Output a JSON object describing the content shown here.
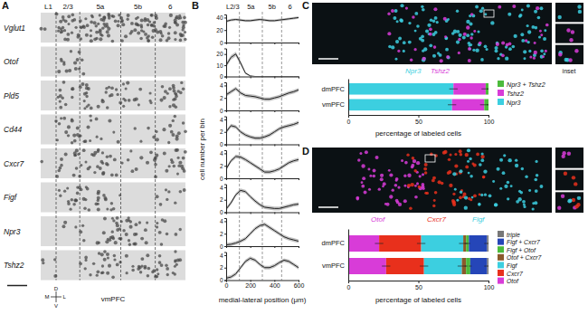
{
  "figure": {
    "panel_a": {
      "letter": "A",
      "genes": [
        "Vglut1",
        "Otof",
        "Pld5",
        "Cd44",
        "Cxcr7",
        "Figf",
        "Npr3",
        "Tshz2"
      ],
      "layers": [
        "L1",
        "2/3",
        "5a",
        "5b",
        "6"
      ],
      "region": "vmPFC",
      "compass": [
        "D",
        "V",
        "M",
        "L"
      ]
    },
    "panel_b": {
      "letter": "B",
      "layers": [
        "L2/3",
        "5a",
        "5b",
        "6"
      ],
      "layer_boundaries": [
        110,
        300,
        460
      ],
      "ylabel": "cell number per bin",
      "xlabel": "medial-lateral position (μm)"
    },
    "panel_c": {
      "letter": "C",
      "image_labels": [
        {
          "text": "Npr3",
          "color": "#3ccfe0"
        },
        {
          "text": "Tshz2",
          "color": "#d83cd8"
        }
      ],
      "inset": "inset"
    },
    "panel_d": {
      "letter": "D",
      "image_labels": [
        {
          "text": "Otof",
          "color": "#d83cd8"
        },
        {
          "text": "Cxcr7",
          "color": "#e8301c"
        },
        {
          "text": "Figf",
          "color": "#3ccfe0"
        }
      ]
    }
  },
  "chart_data": [
    {
      "type": "line",
      "x": [
        0,
        40,
        80,
        120,
        160,
        200,
        240,
        280,
        320,
        360,
        400,
        440,
        480,
        520,
        560,
        600
      ],
      "series": [
        {
          "color": "#222222",
          "values": [
            34,
            36,
            37,
            36,
            35,
            35,
            36,
            37,
            36,
            35,
            35,
            36,
            37,
            38,
            39,
            40
          ],
          "errors": [
            2,
            2,
            2,
            2,
            2,
            2,
            2,
            2,
            2,
            2,
            2,
            2,
            2,
            2,
            2,
            2
          ]
        }
      ],
      "xlim": [
        0,
        600
      ],
      "xticks": [
        0,
        200,
        400,
        600
      ],
      "ylim": [
        0,
        45
      ],
      "yticks": [
        0,
        20,
        40
      ],
      "tick_labels": "y"
    },
    {
      "type": "line",
      "x": [
        0,
        40,
        80,
        120,
        160,
        200,
        240,
        280,
        320,
        360,
        400,
        440,
        480,
        520,
        560,
        600
      ],
      "series": [
        {
          "color": "#222222",
          "values": [
            10,
            17,
            20,
            12,
            3,
            0.5,
            0,
            0,
            0,
            0,
            0,
            0,
            0,
            0,
            0,
            0
          ],
          "errors": [
            2,
            2,
            2,
            2,
            1,
            0.3,
            0,
            0,
            0,
            0,
            0,
            0,
            0,
            0,
            0,
            0
          ]
        }
      ],
      "xlim": [
        0,
        600
      ],
      "xticks": [
        0,
        200,
        400,
        600
      ],
      "ylim": [
        0,
        25
      ],
      "yticks": [
        0,
        10,
        20
      ],
      "tick_labels": "y"
    },
    {
      "type": "line",
      "x": [
        0,
        40,
        80,
        120,
        160,
        200,
        240,
        280,
        320,
        360,
        400,
        440,
        480,
        520,
        560,
        600
      ],
      "series": [
        {
          "color": "#222222",
          "values": [
            2.5,
            3,
            3.5,
            2.8,
            2.4,
            2.3,
            2.2,
            2,
            1.8,
            1.8,
            2,
            2.2,
            2.5,
            2.8,
            3,
            3.3
          ],
          "errors": [
            0.3,
            0.3,
            0.3,
            0.3,
            0.3,
            0.3,
            0.3,
            0.3,
            0.3,
            0.3,
            0.3,
            0.3,
            0.3,
            0.3,
            0.3,
            0.3
          ]
        }
      ],
      "xlim": [
        0,
        600
      ],
      "xticks": [
        0,
        200,
        400,
        600
      ],
      "ylim": [
        0,
        4.5
      ],
      "yticks": [
        0,
        2,
        4
      ],
      "tick_labels": "y"
    },
    {
      "type": "line",
      "x": [
        0,
        40,
        80,
        120,
        160,
        200,
        240,
        280,
        320,
        360,
        400,
        440,
        480,
        520,
        560,
        600
      ],
      "series": [
        {
          "color": "#222222",
          "values": [
            2,
            3,
            2.8,
            2,
            1.5,
            1.2,
            1,
            1,
            1.2,
            1.5,
            2,
            2.5,
            2.8,
            3,
            3.2,
            3.5
          ],
          "errors": [
            0.3,
            0.3,
            0.3,
            0.3,
            0.3,
            0.3,
            0.3,
            0.3,
            0.3,
            0.3,
            0.3,
            0.3,
            0.3,
            0.3,
            0.3,
            0.3
          ]
        }
      ],
      "xlim": [
        0,
        600
      ],
      "xticks": [
        0,
        200,
        400,
        600
      ],
      "ylim": [
        0,
        4.5
      ],
      "yticks": [
        0,
        2,
        4
      ],
      "tick_labels": "y"
    },
    {
      "type": "line",
      "x": [
        0,
        40,
        80,
        120,
        160,
        200,
        240,
        280,
        320,
        360,
        400,
        440,
        480,
        520,
        560,
        600
      ],
      "series": [
        {
          "color": "#222222",
          "values": [
            1.5,
            2.8,
            3.5,
            3.4,
            3,
            2.5,
            2,
            1.5,
            1,
            1,
            1.2,
            1.5,
            2,
            2.5,
            2.8,
            3
          ],
          "errors": [
            0.3,
            0.3,
            0.3,
            0.3,
            0.3,
            0.3,
            0.3,
            0.3,
            0.3,
            0.3,
            0.3,
            0.3,
            0.3,
            0.3,
            0.3,
            0.3
          ]
        }
      ],
      "xlim": [
        0,
        600
      ],
      "xticks": [
        0,
        200,
        400,
        600
      ],
      "ylim": [
        0,
        4.5
      ],
      "yticks": [
        0,
        2,
        4
      ],
      "tick_labels": "y"
    },
    {
      "type": "line",
      "x": [
        0,
        40,
        80,
        120,
        160,
        200,
        240,
        280,
        320,
        360,
        400,
        440,
        480,
        520,
        560,
        600
      ],
      "series": [
        {
          "color": "#222222",
          "values": [
            0.5,
            1.5,
            2.8,
            3.5,
            3.3,
            2.5,
            1.8,
            1.2,
            0.8,
            0.7,
            0.6,
            0.6,
            0.8,
            1,
            1.2,
            1.3
          ],
          "errors": [
            0.3,
            0.3,
            0.3,
            0.3,
            0.3,
            0.3,
            0.3,
            0.3,
            0.3,
            0.3,
            0.3,
            0.3,
            0.3,
            0.3,
            0.3,
            0.3
          ]
        }
      ],
      "xlim": [
        0,
        600
      ],
      "xticks": [
        0,
        200,
        400,
        600
      ],
      "ylim": [
        0,
        4.5
      ],
      "yticks": [
        0,
        2,
        4
      ],
      "tick_labels": "y"
    },
    {
      "type": "line",
      "x": [
        0,
        40,
        80,
        120,
        160,
        200,
        240,
        280,
        320,
        360,
        400,
        440,
        480,
        520,
        560,
        600
      ],
      "series": [
        {
          "color": "#222222",
          "values": [
            0.2,
            0.3,
            0.5,
            0.8,
            1.2,
            2,
            2.8,
            3.3,
            3.5,
            3,
            2.5,
            2,
            1.5,
            1.2,
            1,
            0.8
          ],
          "errors": [
            0.3,
            0.3,
            0.3,
            0.3,
            0.3,
            0.3,
            0.3,
            0.3,
            0.3,
            0.3,
            0.3,
            0.3,
            0.3,
            0.3,
            0.3,
            0.3
          ]
        }
      ],
      "xlim": [
        0,
        600
      ],
      "xticks": [
        0,
        200,
        400,
        600
      ],
      "ylim": [
        0,
        4.5
      ],
      "yticks": [
        0,
        2,
        4
      ],
      "tick_labels": "y"
    },
    {
      "type": "line",
      "x": [
        0,
        40,
        80,
        120,
        160,
        200,
        240,
        280,
        320,
        360,
        400,
        440,
        480,
        520,
        560,
        600
      ],
      "series": [
        {
          "color": "#222222",
          "values": [
            0.3,
            0.5,
            1,
            2,
            3,
            3.5,
            3.2,
            2.5,
            2,
            2,
            2.3,
            2.8,
            3.2,
            3,
            2.5,
            2
          ],
          "errors": [
            0.3,
            0.3,
            0.3,
            0.3,
            0.3,
            0.3,
            0.3,
            0.3,
            0.3,
            0.3,
            0.3,
            0.3,
            0.3,
            0.3,
            0.3,
            0.3
          ]
        }
      ],
      "xlim": [
        0,
        600
      ],
      "xticks": [
        0,
        200,
        400,
        600
      ],
      "ylim": [
        0,
        4.5
      ],
      "yticks": [
        0,
        2,
        4
      ],
      "tick_labels": true
    },
    {
      "type": "bar",
      "orientation": "horizontal",
      "stacked": true,
      "legend": "right",
      "xlabel": "percentage of labeled cells",
      "categories": [
        "dmPFC",
        "vmPFC"
      ],
      "series": [
        {
          "name": "Npr3",
          "color": "#3ccfe0",
          "values": [
            75,
            74
          ],
          "errors": [
            3,
            3
          ]
        },
        {
          "name": "Tshz2",
          "color": "#d83cd8",
          "values": [
            23,
            23
          ],
          "errors": [
            3,
            3
          ]
        },
        {
          "name": "Npr3 + Tshz2",
          "color": "#4cbb3c",
          "values": [
            2,
            3
          ],
          "errors": [
            1,
            1
          ]
        }
      ],
      "xlim": [
        0,
        100
      ],
      "xticks": [
        0,
        50,
        100
      ]
    },
    {
      "type": "bar",
      "orientation": "horizontal",
      "stacked": true,
      "legend": "right",
      "xlabel": "percentage of labeled cells",
      "categories": [
        "dmPFC",
        "vmPFC"
      ],
      "series": [
        {
          "name": "Otof",
          "color": "#d83cd8",
          "values": [
            22,
            27
          ],
          "errors": [
            3,
            3
          ]
        },
        {
          "name": "Cxcr7",
          "color": "#e8301c",
          "values": [
            30,
            27
          ],
          "errors": [
            3,
            3
          ]
        },
        {
          "name": "Figf",
          "color": "#3ccfe0",
          "values": [
            30,
            27
          ],
          "errors": [
            3,
            3
          ]
        },
        {
          "name": "Otof + Cxcr7",
          "color": "#8b5a2b",
          "values": [
            2,
            3
          ],
          "errors": [
            1,
            1
          ]
        },
        {
          "name": "Figf + Otof",
          "color": "#4cbb3c",
          "values": [
            2,
            3
          ],
          "errors": [
            1,
            1
          ]
        },
        {
          "name": "Figf + Cxcr7",
          "color": "#2546b8",
          "values": [
            13,
            12
          ],
          "errors": [
            2,
            2
          ]
        },
        {
          "name": "triple",
          "color": "#777777",
          "values": [
            1,
            1
          ],
          "errors": [
            0.5,
            0.5
          ]
        }
      ],
      "xlim": [
        0,
        100
      ],
      "xticks": [
        0,
        50,
        100
      ]
    }
  ]
}
